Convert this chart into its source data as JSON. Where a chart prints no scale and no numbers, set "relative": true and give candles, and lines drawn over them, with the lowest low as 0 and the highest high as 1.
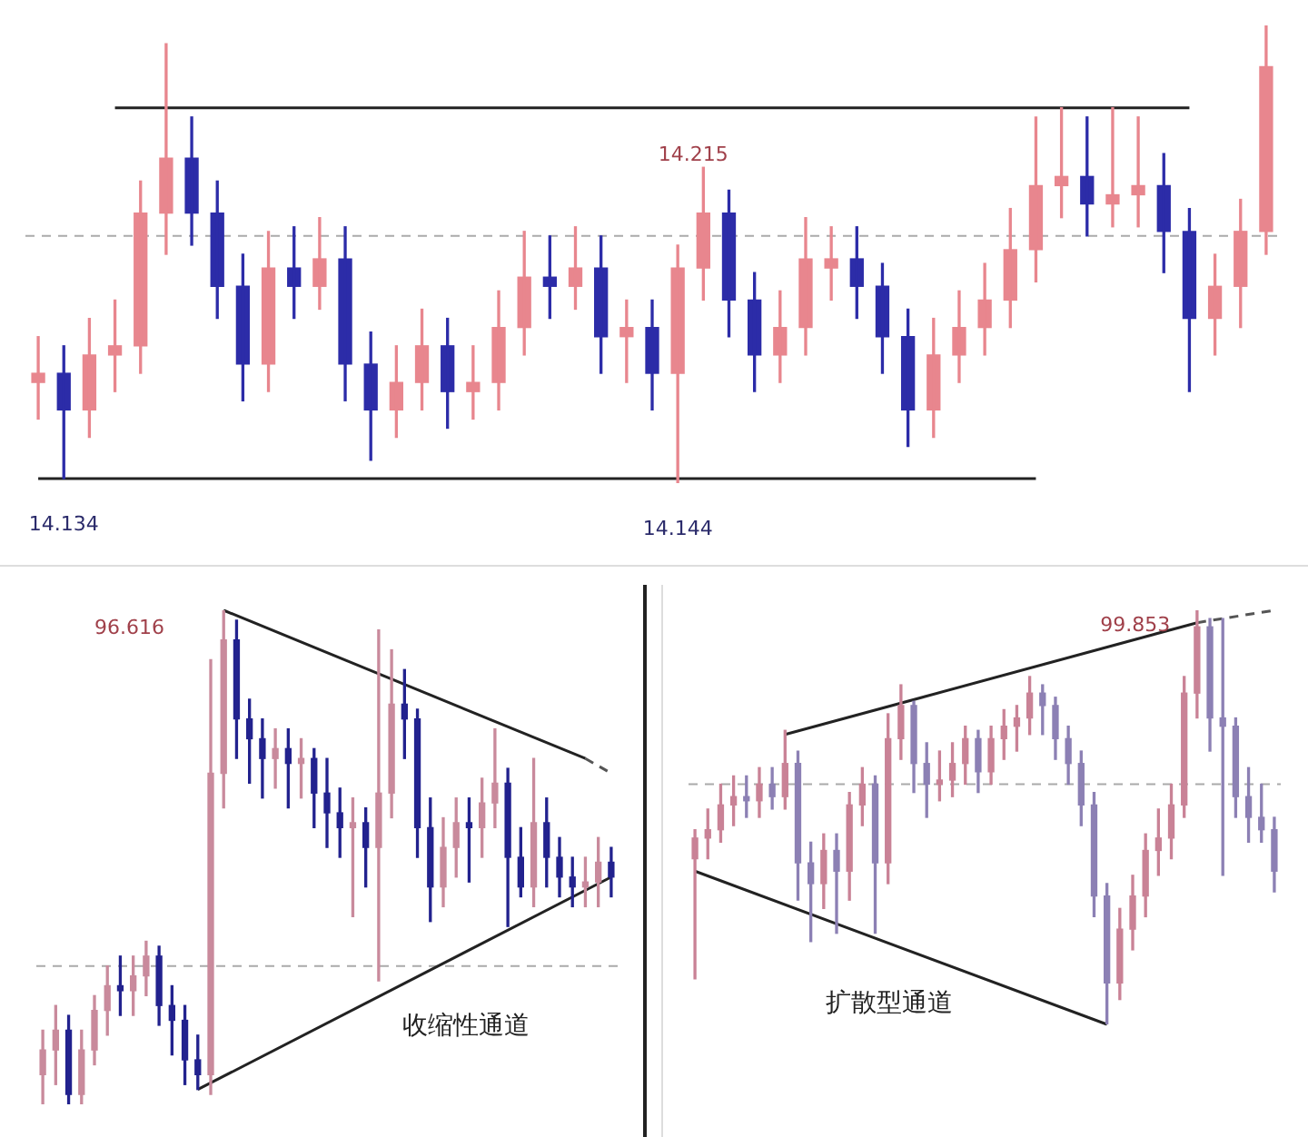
{
  "chart_data": [
    {
      "type": "candlestick",
      "relative": true,
      "categories": [
        null,
        null,
        null,
        null,
        null,
        null,
        null,
        null,
        null,
        null,
        null,
        null,
        null,
        null,
        null,
        null,
        null,
        null,
        null,
        null,
        null,
        null,
        null,
        null,
        null,
        null,
        null,
        null,
        null,
        null,
        null,
        null,
        null,
        null,
        null,
        null,
        null,
        null,
        null,
        null,
        null,
        null,
        null,
        null,
        null,
        null,
        null,
        null,
        null
      ],
      "ohlc": [
        [
          0.22,
          0.32,
          0.14,
          0.24
        ],
        [
          0.24,
          0.3,
          0.01,
          0.16
        ],
        [
          0.16,
          0.36,
          0.1,
          0.28
        ],
        [
          0.28,
          0.4,
          0.2,
          0.3
        ],
        [
          0.3,
          0.66,
          0.24,
          0.59
        ],
        [
          0.59,
          0.96,
          0.5,
          0.71
        ],
        [
          0.71,
          0.8,
          0.52,
          0.59
        ],
        [
          0.59,
          0.66,
          0.36,
          0.43
        ],
        [
          0.43,
          0.5,
          0.18,
          0.26
        ],
        [
          0.26,
          0.55,
          0.2,
          0.47
        ],
        [
          0.47,
          0.56,
          0.36,
          0.43
        ],
        [
          0.43,
          0.58,
          0.38,
          0.49
        ],
        [
          0.49,
          0.56,
          0.18,
          0.26
        ],
        [
          0.26,
          0.33,
          0.05,
          0.16
        ],
        [
          0.16,
          0.3,
          0.1,
          0.22
        ],
        [
          0.22,
          0.38,
          0.16,
          0.3
        ],
        [
          0.3,
          0.36,
          0.12,
          0.2
        ],
        [
          0.2,
          0.3,
          0.14,
          0.22
        ],
        [
          0.22,
          0.42,
          0.16,
          0.34
        ],
        [
          0.34,
          0.55,
          0.28,
          0.45
        ],
        [
          0.45,
          0.54,
          0.36,
          0.43
        ],
        [
          0.43,
          0.56,
          0.38,
          0.47
        ],
        [
          0.47,
          0.54,
          0.24,
          0.32
        ],
        [
          0.32,
          0.4,
          0.22,
          0.34
        ],
        [
          0.34,
          0.4,
          0.16,
          0.24
        ],
        [
          0.24,
          0.52,
          0.0,
          0.47
        ],
        [
          0.47,
          0.69,
          0.4,
          0.59
        ],
        [
          0.59,
          0.64,
          0.32,
          0.4
        ],
        [
          0.4,
          0.46,
          0.2,
          0.28
        ],
        [
          0.28,
          0.42,
          0.22,
          0.34
        ],
        [
          0.34,
          0.58,
          0.28,
          0.49
        ],
        [
          0.47,
          0.56,
          0.4,
          0.49
        ],
        [
          0.49,
          0.56,
          0.36,
          0.43
        ],
        [
          0.43,
          0.48,
          0.24,
          0.32
        ],
        [
          0.32,
          0.38,
          0.08,
          0.16
        ],
        [
          0.16,
          0.36,
          0.1,
          0.28
        ],
        [
          0.28,
          0.42,
          0.22,
          0.34
        ],
        [
          0.34,
          0.48,
          0.28,
          0.4
        ],
        [
          0.4,
          0.6,
          0.34,
          0.51
        ],
        [
          0.51,
          0.8,
          0.44,
          0.65
        ],
        [
          0.65,
          0.82,
          0.58,
          0.67
        ],
        [
          0.67,
          0.8,
          0.54,
          0.61
        ],
        [
          0.61,
          0.82,
          0.56,
          0.63
        ],
        [
          0.63,
          0.8,
          0.56,
          0.65
        ],
        [
          0.65,
          0.72,
          0.46,
          0.55
        ],
        [
          0.55,
          0.6,
          0.2,
          0.36
        ],
        [
          0.36,
          0.5,
          0.28,
          0.43
        ],
        [
          0.43,
          0.62,
          0.34,
          0.55
        ],
        [
          0.55,
          1.0,
          0.5,
          0.91
        ]
      ],
      "colors": [
        "#e8868e",
        "#2c2ca8",
        "#e8868e",
        "#e8868e",
        "#e8868e",
        "#e8868e",
        "#2c2ca8",
        "#2c2ca8",
        "#2c2ca8",
        "#e8868e",
        "#2c2ca8",
        "#e8868e",
        "#2c2ca8",
        "#2c2ca8",
        "#e8868e",
        "#e8868e",
        "#2c2ca8",
        "#e8868e",
        "#e8868e",
        "#e8868e",
        "#2c2ca8",
        "#e8868e",
        "#2c2ca8",
        "#e8868e",
        "#2c2ca8",
        "#e8868e",
        "#e8868e",
        "#2c2ca8",
        "#2c2ca8",
        "#e8868e",
        "#e8868e",
        "#e8868e",
        "#2c2ca8",
        "#2c2ca8",
        "#2c2ca8",
        "#e8868e",
        "#e8868e",
        "#e8868e",
        "#e8868e",
        "#e8868e",
        "#e8868e",
        "#2c2ca8",
        "#e8868e",
        "#e8868e",
        "#2c2ca8",
        "#2c2ca8",
        "#e8868e",
        "#e8868e",
        "#e8868e"
      ],
      "series": [
        {
          "type": "line",
          "color": "#222222",
          "line_style": "solid",
          "values": [
            null,
            null,
            null,
            0.82,
            null,
            null,
            null,
            null,
            null,
            null,
            null,
            null,
            null,
            null,
            null,
            null,
            null,
            null,
            null,
            null,
            null,
            null,
            null,
            null,
            null,
            null,
            null,
            null,
            null,
            null,
            null,
            null,
            null,
            null,
            null,
            null,
            null,
            null,
            null,
            null,
            null,
            null,
            null,
            null,
            null,
            0.82,
            null,
            null,
            null
          ]
        },
        {
          "type": "line",
          "color": "#222222",
          "line_style": "solid",
          "values": [
            0.01,
            null,
            null,
            null,
            null,
            null,
            null,
            null,
            null,
            null,
            null,
            null,
            null,
            null,
            null,
            null,
            null,
            null,
            null,
            null,
            null,
            null,
            null,
            null,
            null,
            null,
            null,
            null,
            null,
            null,
            null,
            null,
            null,
            null,
            null,
            null,
            null,
            null,
            null,
            0.01,
            null,
            null,
            null,
            null,
            null,
            null,
            null,
            null,
            null
          ]
        }
      ],
      "ref_lines": [
        {
          "axis": "y",
          "value": 0.54,
          "color": "#aaaaaa",
          "line_style": "dashed"
        }
      ],
      "annotations": [
        {
          "text": "14.134",
          "y": 0.01
        },
        {
          "text": "14.144",
          "y": 0.0
        },
        "14.215"
      ]
    },
    {
      "type": "candlestick",
      "relative": true,
      "categories": [
        null,
        null,
        null,
        null,
        null,
        null,
        null,
        null,
        null,
        null,
        null,
        null,
        null,
        null,
        null,
        null,
        null,
        null,
        null,
        null,
        null,
        null,
        null,
        null,
        null,
        null,
        null,
        null,
        null,
        null,
        null,
        null,
        null,
        null,
        null,
        null,
        null,
        null,
        null,
        null,
        null,
        null,
        null,
        null,
        null
      ],
      "ohlc": [
        [
          0.06,
          0.15,
          0.0,
          0.11
        ],
        [
          0.11,
          0.2,
          0.04,
          0.15
        ],
        [
          0.15,
          0.18,
          0.0,
          0.02
        ],
        [
          0.02,
          0.15,
          0.0,
          0.11
        ],
        [
          0.11,
          0.22,
          0.08,
          0.19
        ],
        [
          0.19,
          0.28,
          0.14,
          0.24
        ],
        [
          0.24,
          0.3,
          0.18,
          0.23
        ],
        [
          0.23,
          0.3,
          0.18,
          0.26
        ],
        [
          0.26,
          0.33,
          0.22,
          0.3
        ],
        [
          0.3,
          0.32,
          0.16,
          0.2
        ],
        [
          0.2,
          0.24,
          0.1,
          0.17
        ],
        [
          0.17,
          0.2,
          0.04,
          0.09
        ],
        [
          0.09,
          0.14,
          0.03,
          0.06
        ],
        [
          0.06,
          0.9,
          0.02,
          0.67
        ],
        [
          0.67,
          1.0,
          0.6,
          0.94
        ],
        [
          0.94,
          0.98,
          0.7,
          0.78
        ],
        [
          0.78,
          0.82,
          0.65,
          0.74
        ],
        [
          0.74,
          0.78,
          0.62,
          0.7
        ],
        [
          0.7,
          0.76,
          0.64,
          0.72
        ],
        [
          0.72,
          0.76,
          0.6,
          0.69
        ],
        [
          0.69,
          0.74,
          0.62,
          0.7
        ],
        [
          0.7,
          0.72,
          0.56,
          0.63
        ],
        [
          0.63,
          0.7,
          0.52,
          0.59
        ],
        [
          0.59,
          0.64,
          0.5,
          0.56
        ],
        [
          0.56,
          0.62,
          0.38,
          0.57
        ],
        [
          0.57,
          0.6,
          0.44,
          0.52
        ],
        [
          0.52,
          0.96,
          0.25,
          0.63
        ],
        [
          0.63,
          0.92,
          0.58,
          0.81
        ],
        [
          0.81,
          0.88,
          0.7,
          0.78
        ],
        [
          0.78,
          0.8,
          0.5,
          0.56
        ],
        [
          0.56,
          0.62,
          0.37,
          0.44
        ],
        [
          0.44,
          0.58,
          0.4,
          0.52
        ],
        [
          0.52,
          0.62,
          0.46,
          0.57
        ],
        [
          0.57,
          0.62,
          0.45,
          0.56
        ],
        [
          0.56,
          0.66,
          0.5,
          0.61
        ],
        [
          0.61,
          0.76,
          0.56,
          0.65
        ],
        [
          0.65,
          0.68,
          0.36,
          0.5
        ],
        [
          0.5,
          0.56,
          0.42,
          0.44
        ],
        [
          0.44,
          0.7,
          0.4,
          0.57
        ],
        [
          0.57,
          0.62,
          0.44,
          0.5
        ],
        [
          0.5,
          0.54,
          0.42,
          0.46
        ],
        [
          0.46,
          0.5,
          0.4,
          0.44
        ],
        [
          0.44,
          0.5,
          0.4,
          0.45
        ],
        [
          0.45,
          0.54,
          0.4,
          0.49
        ],
        [
          0.49,
          0.52,
          0.42,
          0.46
        ]
      ],
      "colors": [
        "#c98a9c",
        "#c98a9c",
        "#22228e",
        "#c98a9c",
        "#c98a9c",
        "#c98a9c",
        "#22228e",
        "#c98a9c",
        "#c98a9c",
        "#22228e",
        "#22228e",
        "#22228e",
        "#22228e",
        "#c98a9c",
        "#c98a9c",
        "#22228e",
        "#22228e",
        "#22228e",
        "#c98a9c",
        "#22228e",
        "#c98a9c",
        "#22228e",
        "#22228e",
        "#22228e",
        "#c98a9c",
        "#22228e",
        "#c98a9c",
        "#c98a9c",
        "#22228e",
        "#22228e",
        "#22228e",
        "#c98a9c",
        "#c98a9c",
        "#22228e",
        "#c98a9c",
        "#c98a9c",
        "#22228e",
        "#22228e",
        "#c98a9c",
        "#22228e",
        "#22228e",
        "#22228e",
        "#c98a9c",
        "#c98a9c",
        "#22228e"
      ],
      "series": [
        {
          "type": "line",
          "color": "#222222",
          "line_style": "solid",
          "values": [
            null,
            null,
            null,
            null,
            null,
            null,
            null,
            null,
            null,
            null,
            null,
            null,
            null,
            null,
            1.0,
            null,
            null,
            null,
            null,
            null,
            null,
            null,
            null,
            null,
            null,
            null,
            null,
            null,
            null,
            null,
            null,
            null,
            null,
            null,
            null,
            null,
            null,
            null,
            null,
            null,
            null,
            null,
            0.7,
            null,
            null
          ]
        },
        {
          "type": "line",
          "color": "#555555",
          "line_style": "dashed",
          "values": [
            null,
            null,
            null,
            null,
            null,
            null,
            null,
            null,
            null,
            null,
            null,
            null,
            null,
            null,
            null,
            null,
            null,
            null,
            null,
            null,
            null,
            null,
            null,
            null,
            null,
            null,
            null,
            null,
            null,
            null,
            null,
            null,
            null,
            null,
            null,
            null,
            null,
            null,
            null,
            null,
            null,
            null,
            0.7,
            null,
            0.67
          ]
        },
        {
          "type": "line",
          "color": "#222222",
          "line_style": "solid",
          "values": [
            null,
            null,
            null,
            null,
            null,
            null,
            null,
            null,
            null,
            null,
            null,
            null,
            0.03,
            null,
            null,
            null,
            null,
            null,
            null,
            null,
            null,
            null,
            null,
            null,
            null,
            null,
            null,
            null,
            null,
            null,
            null,
            null,
            null,
            null,
            null,
            null,
            null,
            null,
            null,
            null,
            null,
            null,
            null,
            null,
            0.46
          ]
        }
      ],
      "ref_lines": [
        {
          "axis": "y",
          "value": 0.28,
          "color": "#aaaaaa",
          "line_style": "dashed"
        }
      ],
      "annotations": [
        "96.616",
        "收缩性通道"
      ]
    },
    {
      "type": "candlestick",
      "relative": true,
      "categories": [
        null,
        null,
        null,
        null,
        null,
        null,
        null,
        null,
        null,
        null,
        null,
        null,
        null,
        null,
        null,
        null,
        null,
        null,
        null,
        null,
        null,
        null,
        null,
        null,
        null,
        null,
        null,
        null,
        null,
        null,
        null,
        null,
        null,
        null,
        null,
        null,
        null,
        null,
        null,
        null,
        null,
        null,
        null,
        null,
        null,
        null
      ],
      "ohlc": [
        [
          0.4,
          0.47,
          0.11,
          0.45
        ],
        [
          0.45,
          0.52,
          0.4,
          0.47
        ],
        [
          0.47,
          0.58,
          0.44,
          0.53
        ],
        [
          0.53,
          0.6,
          0.48,
          0.55
        ],
        [
          0.55,
          0.6,
          0.5,
          0.54
        ],
        [
          0.54,
          0.62,
          0.5,
          0.58
        ],
        [
          0.58,
          0.62,
          0.52,
          0.55
        ],
        [
          0.55,
          0.71,
          0.52,
          0.63
        ],
        [
          0.63,
          0.66,
          0.3,
          0.39
        ],
        [
          0.39,
          0.44,
          0.2,
          0.34
        ],
        [
          0.34,
          0.46,
          0.28,
          0.42
        ],
        [
          0.42,
          0.46,
          0.22,
          0.37
        ],
        [
          0.37,
          0.56,
          0.3,
          0.53
        ],
        [
          0.53,
          0.62,
          0.48,
          0.58
        ],
        [
          0.58,
          0.6,
          0.22,
          0.39
        ],
        [
          0.39,
          0.75,
          0.34,
          0.69
        ],
        [
          0.69,
          0.82,
          0.64,
          0.77
        ],
        [
          0.77,
          0.78,
          0.56,
          0.63
        ],
        [
          0.63,
          0.68,
          0.5,
          0.58
        ],
        [
          0.58,
          0.66,
          0.54,
          0.59
        ],
        [
          0.59,
          0.68,
          0.55,
          0.63
        ],
        [
          0.63,
          0.72,
          0.58,
          0.69
        ],
        [
          0.69,
          0.71,
          0.56,
          0.61
        ],
        [
          0.61,
          0.72,
          0.58,
          0.69
        ],
        [
          0.69,
          0.76,
          0.64,
          0.72
        ],
        [
          0.72,
          0.77,
          0.66,
          0.74
        ],
        [
          0.74,
          0.84,
          0.7,
          0.8
        ],
        [
          0.8,
          0.82,
          0.7,
          0.77
        ],
        [
          0.77,
          0.79,
          0.64,
          0.69
        ],
        [
          0.69,
          0.72,
          0.58,
          0.63
        ],
        [
          0.63,
          0.66,
          0.48,
          0.53
        ],
        [
          0.53,
          0.56,
          0.26,
          0.31
        ],
        [
          0.31,
          0.34,
          0.0,
          0.1
        ],
        [
          0.1,
          0.28,
          0.06,
          0.23
        ],
        [
          0.23,
          0.36,
          0.18,
          0.31
        ],
        [
          0.31,
          0.46,
          0.26,
          0.42
        ],
        [
          0.42,
          0.52,
          0.36,
          0.45
        ],
        [
          0.45,
          0.58,
          0.4,
          0.53
        ],
        [
          0.53,
          0.84,
          0.5,
          0.8
        ],
        [
          0.8,
          1.0,
          0.74,
          0.96
        ],
        [
          0.96,
          0.98,
          0.66,
          0.74
        ],
        [
          0.74,
          0.98,
          0.36,
          0.72
        ],
        [
          0.72,
          0.74,
          0.5,
          0.55
        ],
        [
          0.55,
          0.62,
          0.44,
          0.5
        ],
        [
          0.5,
          0.58,
          0.44,
          0.47
        ],
        [
          0.47,
          0.5,
          0.32,
          0.37
        ]
      ],
      "colors": [
        "#c98296",
        "#c98296",
        "#c98296",
        "#c98296",
        "#8c80b4",
        "#c98296",
        "#8c80b4",
        "#c98296",
        "#8c80b4",
        "#8c80b4",
        "#c98296",
        "#8c80b4",
        "#c98296",
        "#c98296",
        "#8c80b4",
        "#c98296",
        "#c98296",
        "#8c80b4",
        "#8c80b4",
        "#c98296",
        "#c98296",
        "#c98296",
        "#8c80b4",
        "#c98296",
        "#c98296",
        "#c98296",
        "#c98296",
        "#8c80b4",
        "#8c80b4",
        "#8c80b4",
        "#8c80b4",
        "#8c80b4",
        "#8c80b4",
        "#c98296",
        "#c98296",
        "#c98296",
        "#c98296",
        "#c98296",
        "#c98296",
        "#c98296",
        "#8c80b4",
        "#8c80b4",
        "#8c80b4",
        "#8c80b4",
        "#8c80b4",
        "#8c80b4"
      ],
      "series": [
        {
          "type": "line",
          "color": "#222222",
          "line_style": "solid",
          "values": [
            null,
            null,
            null,
            null,
            null,
            null,
            null,
            0.7,
            null,
            null,
            null,
            null,
            null,
            null,
            null,
            null,
            null,
            null,
            null,
            null,
            null,
            null,
            null,
            null,
            null,
            null,
            null,
            null,
            null,
            null,
            null,
            null,
            null,
            null,
            null,
            null,
            null,
            null,
            null,
            0.97,
            null,
            null,
            null,
            null,
            null,
            null
          ]
        },
        {
          "type": "line",
          "color": "#555555",
          "line_style": "dashed",
          "values": [
            null,
            null,
            null,
            null,
            null,
            null,
            null,
            null,
            null,
            null,
            null,
            null,
            null,
            null,
            null,
            null,
            null,
            null,
            null,
            null,
            null,
            null,
            null,
            null,
            null,
            null,
            null,
            null,
            null,
            null,
            null,
            null,
            null,
            null,
            null,
            null,
            null,
            null,
            null,
            0.97,
            null,
            null,
            null,
            null,
            null,
            1.0
          ]
        },
        {
          "type": "line",
          "color": "#222222",
          "line_style": "solid",
          "values": [
            0.37,
            null,
            null,
            null,
            null,
            null,
            null,
            null,
            null,
            null,
            null,
            null,
            null,
            null,
            null,
            null,
            null,
            null,
            null,
            null,
            null,
            null,
            null,
            null,
            null,
            null,
            null,
            null,
            null,
            null,
            null,
            null,
            0.0,
            null,
            null,
            null,
            null,
            null,
            null,
            null,
            null,
            null,
            null,
            null,
            null,
            null
          ]
        }
      ],
      "ref_lines": [
        {
          "axis": "y",
          "value": 0.58,
          "color": "#aaaaaa",
          "line_style": "dashed"
        }
      ],
      "annotations": [
        "99.853",
        "扩散型通道"
      ]
    }
  ]
}
